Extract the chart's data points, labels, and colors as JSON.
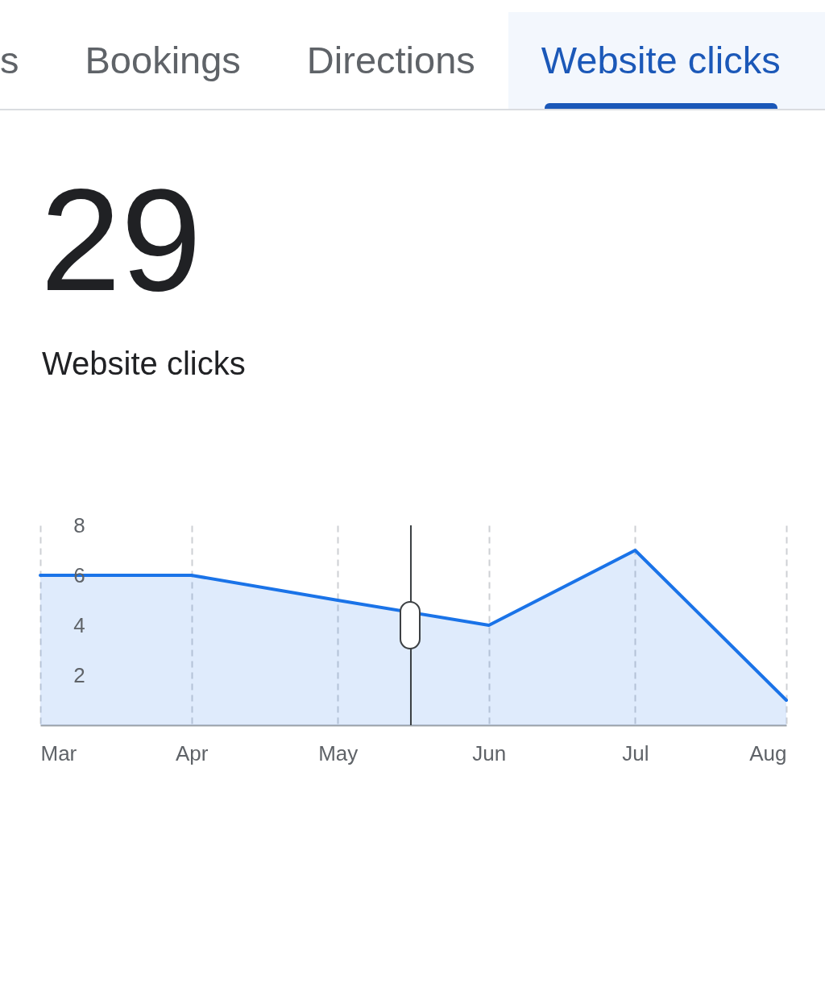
{
  "chart_data": {
    "type": "area",
    "title": "29",
    "subtitle": "Website clicks",
    "annotations": [
      "s",
      "Bookings",
      "Directions",
      "Website clicks"
    ],
    "x": [
      "--03-01",
      "--04-01",
      "--05-01",
      "--06-01",
      "--07-01",
      "--08-01"
    ],
    "values": [
      6,
      6,
      5,
      4,
      7,
      1
    ],
    "color": "#1a73e8",
    "xlim": [
      "--03-01",
      "--08-01"
    ],
    "xticks": [
      {
        "value": "--03-01",
        "label": "Mar"
      },
      {
        "value": "--04-01",
        "label": "Apr"
      },
      {
        "value": "--05-01",
        "label": "May"
      },
      {
        "value": "--06-01",
        "label": "Jun"
      },
      {
        "value": "--07-01",
        "label": "Jul"
      },
      {
        "value": "--08-01",
        "label": "Aug"
      }
    ],
    "ylim": [
      0,
      8
    ],
    "yticks": [
      2,
      4,
      6,
      8
    ],
    "grid": "x",
    "ref_lines": [
      {
        "axis": "x",
        "value": "--05-16",
        "color": "#3c4043"
      }
    ]
  }
}
